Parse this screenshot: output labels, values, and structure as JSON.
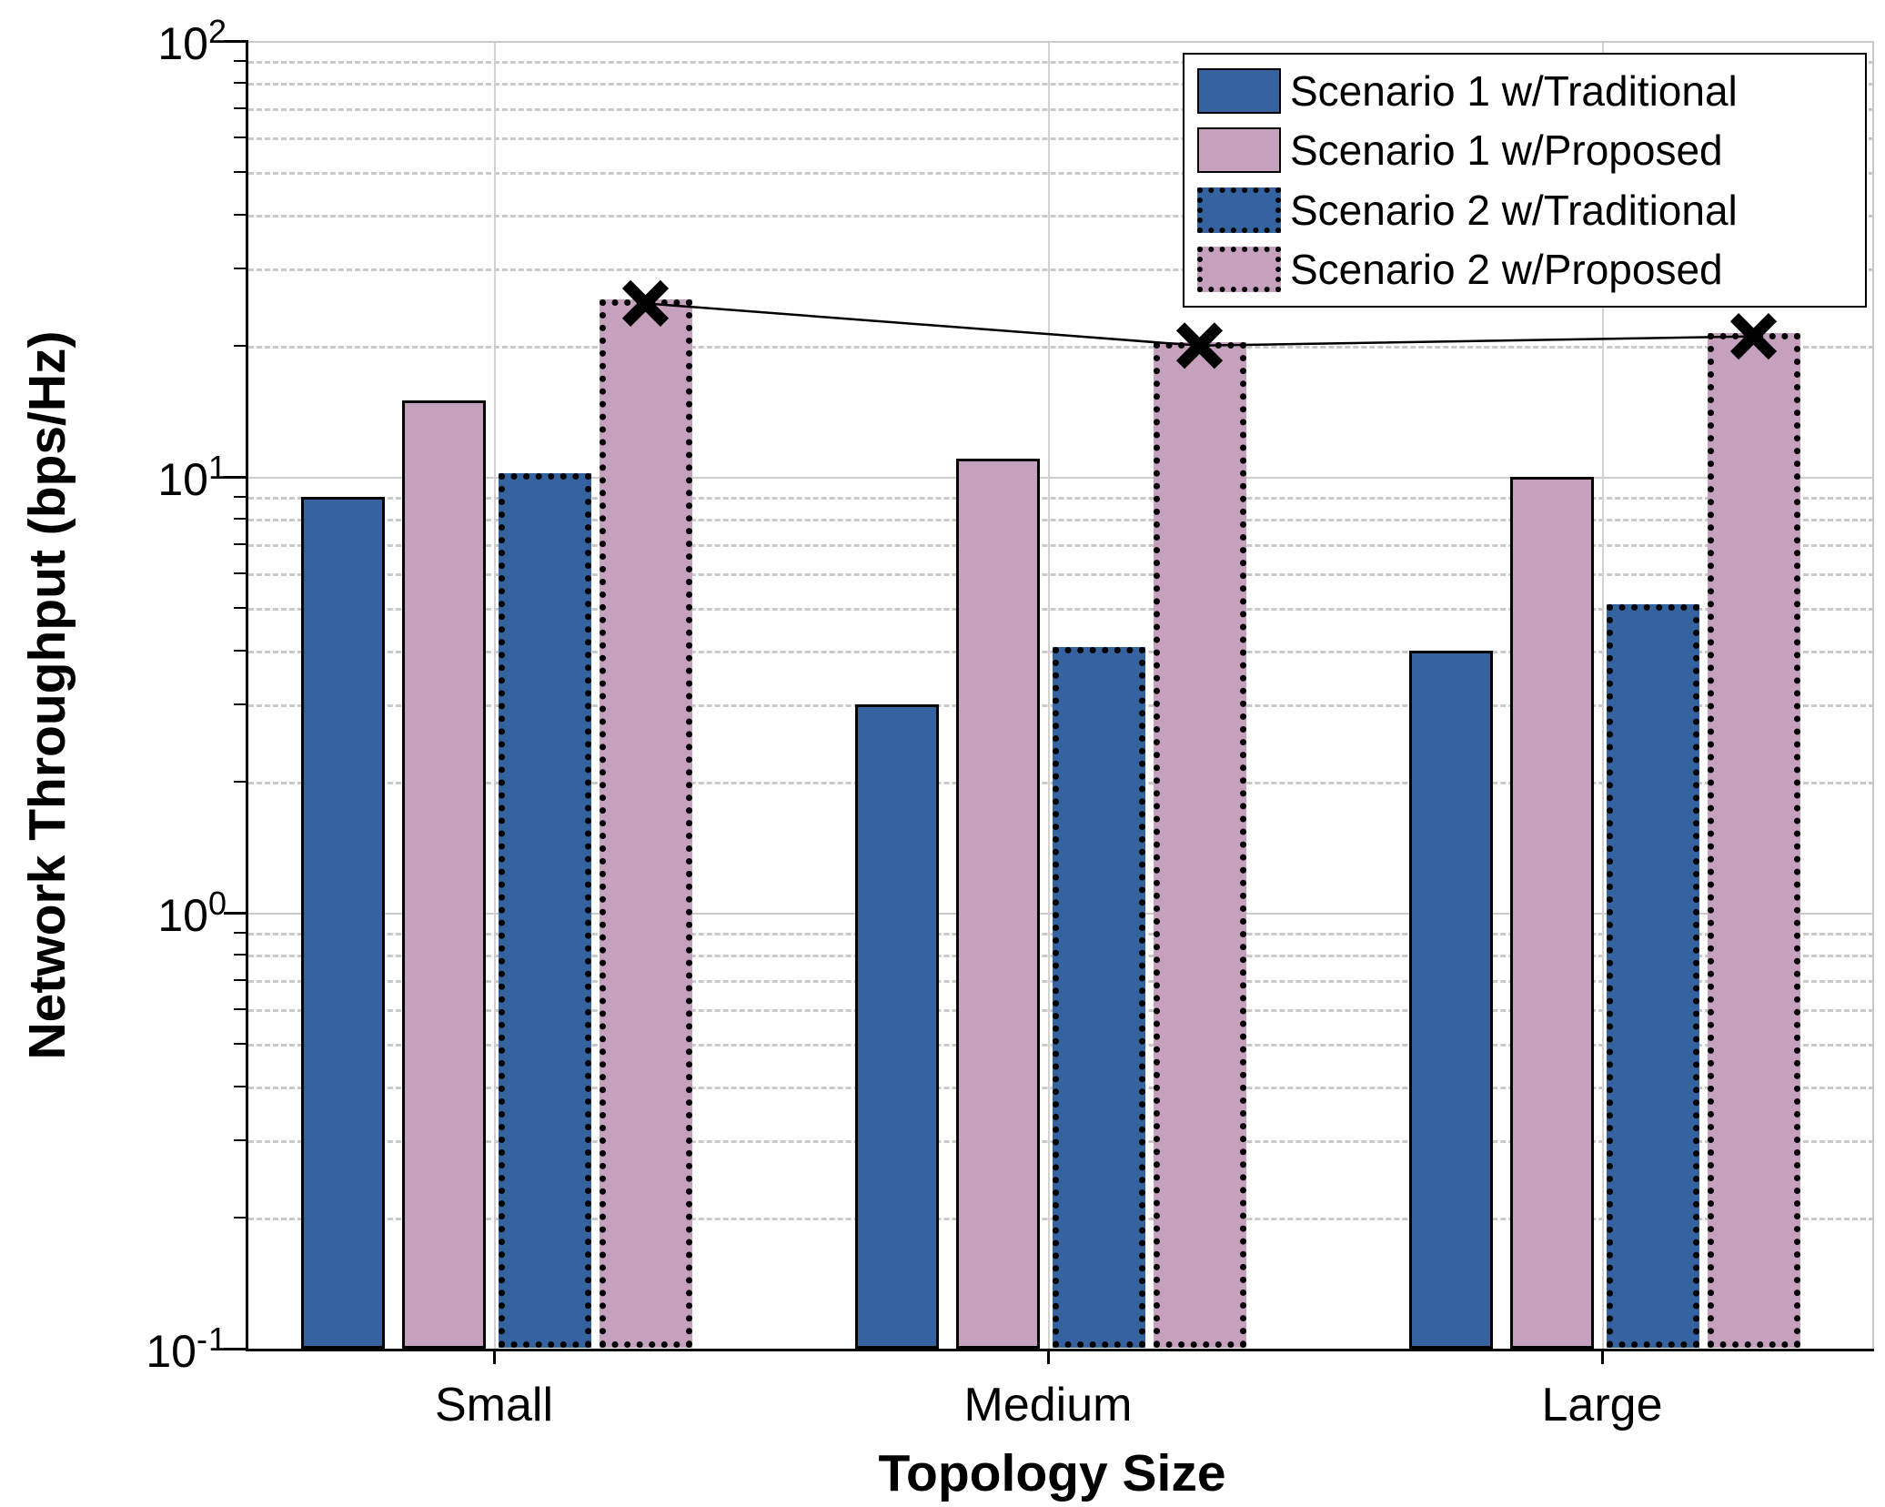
{
  "axes": {
    "ylabel": "Network Throughput (bps/Hz)",
    "xlabel": "Topology Size",
    "y_ticks": [
      {
        "mantissa": "10",
        "exponent": "2",
        "value": 100
      },
      {
        "mantissa": "10",
        "exponent": "1",
        "value": 10
      },
      {
        "mantissa": "10",
        "exponent": "0",
        "value": 1
      },
      {
        "mantissa": "10",
        "exponent": "-1",
        "value": 0.1
      }
    ],
    "x_ticks": [
      "Small",
      "Medium",
      "Large"
    ]
  },
  "legend": {
    "position": "top-right",
    "items": [
      {
        "label": "Scenario 1 w/Traditional",
        "fill": "#3563A0",
        "border": "solid"
      },
      {
        "label": "Scenario 1 w/Proposed",
        "fill": "#C6A1BD",
        "border": "solid"
      },
      {
        "label": "Scenario 2 w/Traditional",
        "fill": "#3563A0",
        "border": "dotted"
      },
      {
        "label": "Scenario 2 w/Proposed",
        "fill": "#C6A1BD",
        "border": "dotted"
      }
    ]
  },
  "chart_data": {
    "type": "bar",
    "title": "",
    "xlabel": "Topology Size",
    "ylabel": "Network Throughput (bps/Hz)",
    "yscale": "log",
    "ylim": [
      0.1,
      100
    ],
    "grid": true,
    "legend_position": "top-right",
    "categories": [
      "Small",
      "Medium",
      "Large"
    ],
    "series": [
      {
        "name": "Scenario 1 w/Traditional",
        "fill": "#3563A0",
        "border": "solid",
        "values": [
          9,
          3,
          4
        ]
      },
      {
        "name": "Scenario 1 w/Proposed",
        "fill": "#C6A1BD",
        "border": "solid",
        "values": [
          15,
          11,
          10
        ]
      },
      {
        "name": "Scenario 2 w/Traditional",
        "fill": "#3563A0",
        "border": "dotted",
        "values": [
          10,
          4,
          5
        ]
      },
      {
        "name": "Scenario 2 w/Proposed",
        "fill": "#C6A1BD",
        "border": "dotted",
        "values": [
          25,
          20,
          21
        ]
      }
    ],
    "overlay_line": {
      "attached_series": "Scenario 2 w/Proposed",
      "marker": "x",
      "values": [
        25,
        20,
        21
      ]
    }
  },
  "colors": {
    "bar_blue": "#3563A0",
    "bar_pink": "#C6A1BD",
    "major_grid": "#CCCCCC",
    "minor_grid": "#C9C9C9",
    "axis_line": "#000000",
    "overlay_line": "#000000",
    "background": "#FFFFFF"
  }
}
